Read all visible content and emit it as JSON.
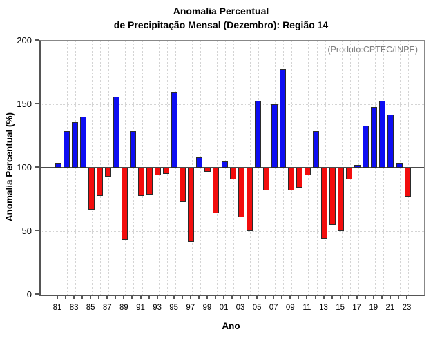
{
  "header": {
    "title_line1": "Anomalia Percentual",
    "title_line2": "de Precipitação Mensal (Dezembro): Região 14"
  },
  "chart_data": {
    "type": "bar",
    "title": "Anomalia Percentual de Precipitação Mensal (Dezembro): Região 14",
    "xlabel": "Ano",
    "ylabel": "Anomalia Percentual (%)",
    "annotation": "(Produto:CPTEC/INPE)",
    "ylim": [
      0,
      200
    ],
    "yticks": [
      0,
      50,
      100,
      150,
      200
    ],
    "baseline": 100,
    "grid": true,
    "legend_position": "none",
    "colors": {
      "above_baseline": "#0d0df2",
      "below_baseline": "#f20d0d",
      "baseline_rule": "#4a4a4a",
      "annotation_text": "#7f7f7f"
    },
    "years": [
      1981,
      1982,
      1983,
      1984,
      1985,
      1986,
      1987,
      1988,
      1989,
      1990,
      1991,
      1992,
      1993,
      1994,
      1995,
      1996,
      1997,
      1998,
      1999,
      2000,
      2001,
      2002,
      2003,
      2004,
      2005,
      2006,
      2007,
      2008,
      2009,
      2010,
      2011,
      2012,
      2013,
      2014,
      2015,
      2016,
      2017,
      2018,
      2019,
      2020,
      2021,
      2022,
      2023
    ],
    "categories": [
      "81",
      "82",
      "83",
      "84",
      "85",
      "86",
      "87",
      "88",
      "89",
      "90",
      "91",
      "92",
      "93",
      "94",
      "95",
      "96",
      "97",
      "98",
      "99",
      "00",
      "01",
      "02",
      "03",
      "04",
      "05",
      "06",
      "07",
      "08",
      "09",
      "10",
      "11",
      "12",
      "13",
      "14",
      "15",
      "16",
      "17",
      "18",
      "19",
      "20",
      "21",
      "22",
      "23"
    ],
    "values": [
      104,
      129,
      136,
      140,
      67,
      78,
      93,
      156,
      43,
      129,
      78,
      79,
      94,
      95,
      159,
      73,
      42,
      108,
      97,
      64,
      105,
      91,
      61,
      50,
      153,
      82,
      150,
      178,
      82,
      84,
      94,
      129,
      44,
      55,
      50,
      91,
      102,
      133,
      148,
      153,
      142,
      104,
      77
    ],
    "xtick_labels": [
      "81",
      "83",
      "85",
      "87",
      "89",
      "91",
      "93",
      "95",
      "97",
      "99",
      "01",
      "03",
      "05",
      "07",
      "09",
      "11",
      "13",
      "15",
      "17",
      "19",
      "21",
      "23"
    ]
  }
}
